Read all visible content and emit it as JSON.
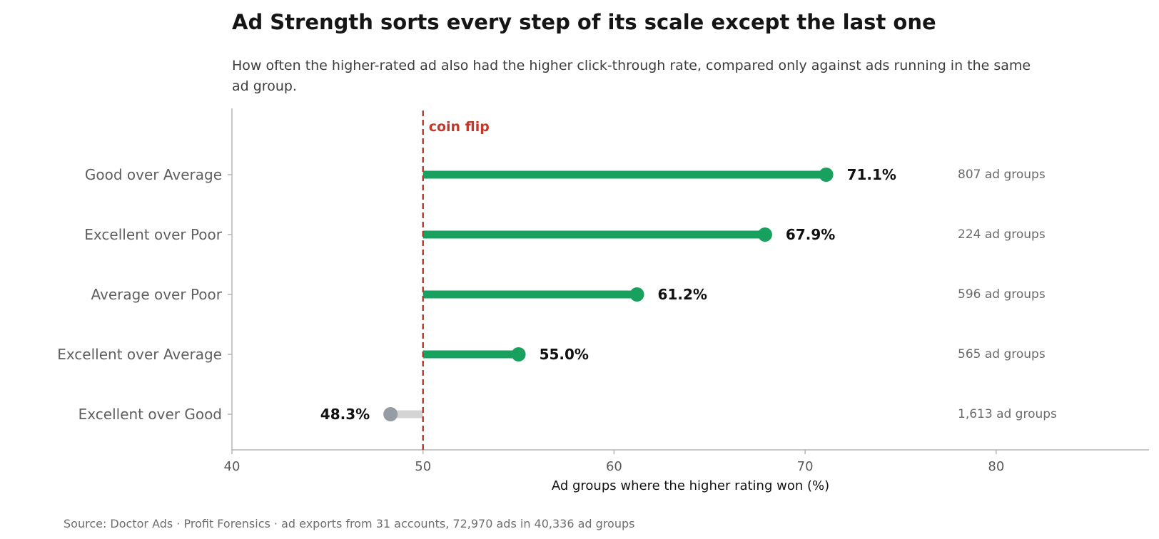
{
  "title": "Ad Strength sorts every step of its scale except the last one",
  "subtitle": "How often the higher-rated ad also had the higher click-through rate, compared only against ads running in the same ad group.",
  "source": "Source: Doctor Ads · Profit Forensics · ad exports from 31 accounts, 72,970 ads in 40,336 ad groups",
  "colors": {
    "above_line": "#17a05e",
    "below_line": "#d4d4d4",
    "below_dot": "#969ca3",
    "reference_line": "#c0392b",
    "axis": "#b5b5b5",
    "tick_label": "#5a5a5a",
    "category_label": "#5f5f5f",
    "count_label": "#6a6a6a",
    "value_label": "#111111"
  },
  "chart_data": {
    "type": "lollipop",
    "title": "Ad Strength sorts every step of its scale except the last one",
    "xlabel": "Ad groups where the higher rating won (%)",
    "xlim": [
      40,
      88
    ],
    "xticks": [
      40,
      50,
      60,
      70,
      80
    ],
    "reference": {
      "value": 50,
      "label": "coin flip"
    },
    "grid": false,
    "categories": [
      "Good over Average",
      "Excellent over Poor",
      "Average over Poor",
      "Excellent over Average",
      "Excellent over Good"
    ],
    "values": [
      71.1,
      67.9,
      61.2,
      55.0,
      48.3
    ],
    "value_labels": [
      "71.1%",
      "67.9%",
      "61.2%",
      "55.0%",
      "48.3%"
    ],
    "counts": [
      "807 ad groups",
      "224 ad groups",
      "596 ad groups",
      "565 ad groups",
      "1,613 ad groups"
    ]
  }
}
